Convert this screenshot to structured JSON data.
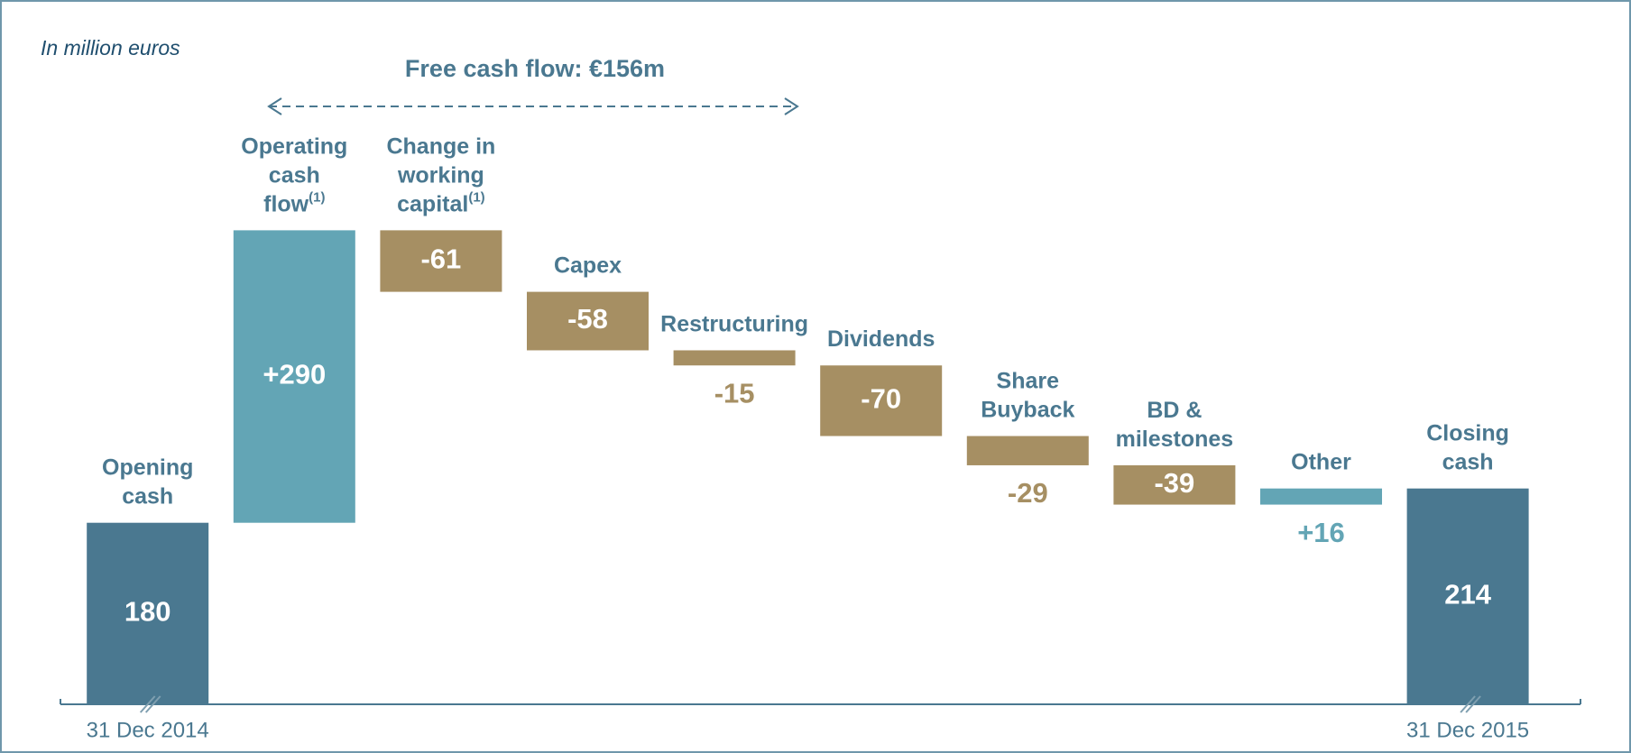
{
  "chart_data": {
    "type": "waterfall",
    "unit_note": "In million euros",
    "annotation": "Free cash flow: €156m",
    "categories": [
      [
        "Opening",
        "cash"
      ],
      [
        "Operating",
        "cash",
        "flow"
      ],
      [
        "Change in",
        "working",
        "capital"
      ],
      [
        "Capex"
      ],
      [
        "Restructuring"
      ],
      [
        "Dividends"
      ],
      [
        "Share",
        "Buyback"
      ],
      [
        "BD &",
        "milestones"
      ],
      [
        "Other"
      ],
      [
        "Closing",
        "cash"
      ]
    ],
    "category_notes": [
      null,
      "(1)",
      "(1)",
      null,
      null,
      null,
      null,
      null,
      null,
      null
    ],
    "values": [
      180,
      290,
      -61,
      -58,
      -15,
      -70,
      -29,
      -39,
      16,
      214
    ],
    "value_labels": [
      "180",
      "+290",
      "-61",
      "-58",
      "-15",
      "-70",
      "-29",
      "-39",
      "+16",
      "214"
    ],
    "totals": [
      true,
      false,
      false,
      false,
      false,
      false,
      false,
      false,
      false,
      true
    ],
    "colors": [
      "#4a7890",
      "#63a5b5",
      "#a68f63",
      "#a68f63",
      "#a68f63",
      "#a68f63",
      "#a68f63",
      "#a68f63",
      "#63a5b5",
      "#4a7890"
    ],
    "x_labels": [
      "31 Dec 2014",
      null,
      null,
      null,
      null,
      null,
      null,
      null,
      null,
      "31 Dec 2015"
    ],
    "ylim": [
      0,
      600
    ]
  }
}
